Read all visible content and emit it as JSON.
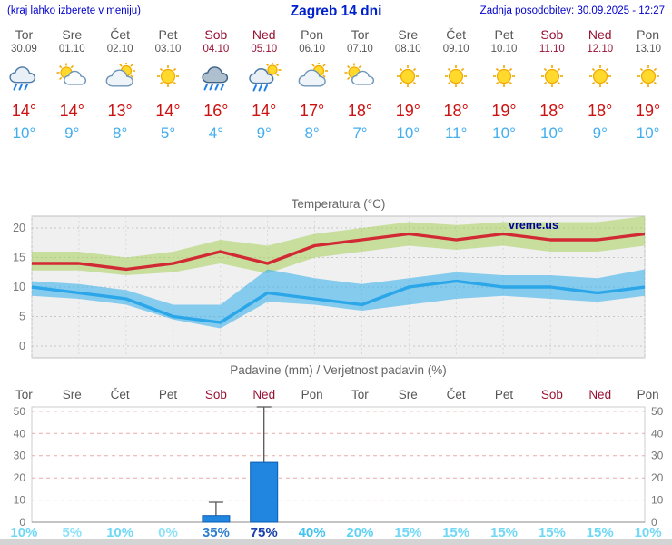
{
  "header": {
    "note": "(kraj lahko izberete v meniju)",
    "title": "Zagreb 14 dni",
    "updated": "Zadnja posodobitev: 30.09.2025 - 12:27"
  },
  "watermark": "vreme.us",
  "colors": {
    "header_text": "#0000cc",
    "weekday_label": "#555555",
    "weekend_label": "#991133",
    "tmax_text": "#cc1111",
    "tmin_text": "#42aef0",
    "watermark_text": "#000099"
  },
  "forecast": {
    "days": [
      {
        "name": "Tor",
        "date": "30.09",
        "weekend": false,
        "icon": "rain",
        "tmax": "14°",
        "tmin": "10°"
      },
      {
        "name": "Sre",
        "date": "01.10",
        "weekend": false,
        "icon": "partly-cloudy",
        "tmax": "14°",
        "tmin": "9°"
      },
      {
        "name": "Čet",
        "date": "02.10",
        "weekend": false,
        "icon": "mostly-cloudy",
        "tmax": "13°",
        "tmin": "8°"
      },
      {
        "name": "Pet",
        "date": "03.10",
        "weekend": false,
        "icon": "sunny",
        "tmax": "14°",
        "tmin": "5°"
      },
      {
        "name": "Sob",
        "date": "04.10",
        "weekend": true,
        "icon": "heavy-rain",
        "tmax": "16°",
        "tmin": "4°"
      },
      {
        "name": "Ned",
        "date": "05.10",
        "weekend": true,
        "icon": "sun-showers",
        "tmax": "14°",
        "tmin": "9°"
      },
      {
        "name": "Pon",
        "date": "06.10",
        "weekend": false,
        "icon": "mostly-cloudy",
        "tmax": "17°",
        "tmin": "8°"
      },
      {
        "name": "Tor",
        "date": "07.10",
        "weekend": false,
        "icon": "partly-cloudy",
        "tmax": "18°",
        "tmin": "7°"
      },
      {
        "name": "Sre",
        "date": "08.10",
        "weekend": false,
        "icon": "sunny",
        "tmax": "19°",
        "tmin": "10°"
      },
      {
        "name": "Čet",
        "date": "09.10",
        "weekend": false,
        "icon": "sunny",
        "tmax": "18°",
        "tmin": "11°"
      },
      {
        "name": "Pet",
        "date": "10.10",
        "weekend": false,
        "icon": "sunny",
        "tmax": "19°",
        "tmin": "10°"
      },
      {
        "name": "Sob",
        "date": "11.10",
        "weekend": true,
        "icon": "sunny",
        "tmax": "18°",
        "tmin": "10°"
      },
      {
        "name": "Ned",
        "date": "12.10",
        "weekend": true,
        "icon": "sunny",
        "tmax": "18°",
        "tmin": "9°"
      },
      {
        "name": "Pon",
        "date": "13.10",
        "weekend": false,
        "icon": "sunny",
        "tmax": "19°",
        "tmin": "10°"
      }
    ]
  },
  "chart_data": [
    {
      "type": "line",
      "title": "Temperatura (°C)",
      "categories": [
        "Tor",
        "Sre",
        "Čet",
        "Pet",
        "Sob",
        "Ned",
        "Pon",
        "Tor",
        "Sre",
        "Čet",
        "Pet",
        "Sob",
        "Ned",
        "Pon"
      ],
      "series": [
        {
          "name": "max-temperature",
          "color": "#d22a35",
          "values": [
            14,
            14,
            13,
            14,
            16,
            14,
            17,
            18,
            19,
            18,
            19,
            18,
            18,
            19
          ]
        },
        {
          "name": "min-temperature",
          "color": "#2ba6e8",
          "values": [
            10,
            9,
            8,
            5,
            4,
            9,
            8,
            7,
            10,
            11,
            10,
            10,
            9,
            10
          ]
        }
      ],
      "bands": [
        {
          "name": "max-temperature-range",
          "color": "rgba(168,208,88,0.55)",
          "upper": [
            16,
            16,
            15,
            16,
            18,
            17,
            19,
            20,
            21,
            20.5,
            21,
            21,
            21,
            22
          ],
          "lower": [
            12.8,
            12.8,
            12,
            12.5,
            14,
            12.3,
            15,
            16,
            17,
            16.3,
            17,
            16,
            16,
            17
          ]
        },
        {
          "name": "min-temperature-range",
          "color": "rgba(62,178,235,0.6)",
          "upper": [
            11,
            10.5,
            9.5,
            7,
            7,
            13,
            11.5,
            10.5,
            11.5,
            12.5,
            12,
            12,
            11.5,
            13
          ],
          "lower": [
            8.5,
            8,
            7,
            4.5,
            3,
            7.5,
            7,
            6,
            7,
            8,
            8.5,
            8,
            7.5,
            8.5
          ]
        }
      ],
      "ylim": [
        -2,
        22
      ],
      "yticks": [
        0,
        5,
        10,
        15,
        20
      ],
      "grid": true,
      "legend": "none"
    },
    {
      "type": "bar",
      "title": "Padavine (mm) / Verjetnost padavin (%)",
      "categories": [
        "Tor",
        "Sre",
        "Čet",
        "Pet",
        "Sob",
        "Ned",
        "Pon",
        "Tor",
        "Sre",
        "Čet",
        "Pet",
        "Sob",
        "Ned",
        "Pon"
      ],
      "weekend_indices": [
        4,
        5,
        11,
        12
      ],
      "values": [
        0,
        0,
        0,
        0,
        3,
        27,
        0,
        0,
        0,
        0,
        0,
        0,
        0,
        0
      ],
      "whisker_high": [
        0,
        0,
        0,
        0,
        9,
        52,
        0,
        0,
        0,
        0,
        0,
        0,
        0,
        0
      ],
      "probabilities": [
        "10%",
        "5%",
        "10%",
        "0%",
        "35%",
        "75%",
        "40%",
        "20%",
        "15%",
        "15%",
        "15%",
        "15%",
        "15%",
        "10%"
      ],
      "prob_colors": [
        "#6fd8f7",
        "#8ce2f9",
        "#6fd8f7",
        "#8ce2f9",
        "#2f7fd0",
        "#1a3fae",
        "#3fc3f2",
        "#5ed2f6",
        "#6fd8f7",
        "#6fd8f7",
        "#6fd8f7",
        "#6fd8f7",
        "#6fd8f7",
        "#6fd8f7"
      ],
      "bar_color": "#2186e0",
      "bar_border": "#0d5cb0",
      "ylim": [
        0,
        52
      ],
      "yticks": [
        0,
        10,
        20,
        30,
        40,
        50
      ],
      "grid": true,
      "legend": "none"
    }
  ]
}
